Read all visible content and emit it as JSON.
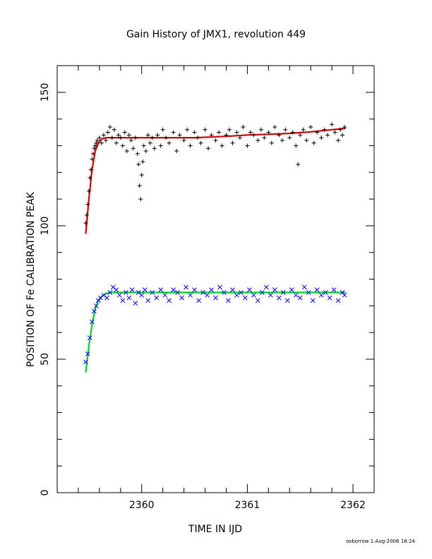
{
  "chart_data": {
    "type": "scatter",
    "title": "Gain History of JMX1, revolution 449",
    "xlabel": "TIME IN IJD",
    "ylabel": "POSITION OF Fe CALIBRATION PEAK",
    "xlim": [
      2359.2,
      2362.2
    ],
    "ylim": [
      0,
      160
    ],
    "x_ticks": [
      "2360",
      "2361",
      "2362"
    ],
    "y_ticks": [
      "0",
      "50",
      "100",
      "150"
    ],
    "grid": false,
    "legend": "none",
    "footer": "oxborrow  1-Aug-2006 18:24",
    "series": [
      {
        "marker": "plus",
        "color": "#000000",
        "x": [
          2359.47,
          2359.48,
          2359.49,
          2359.5,
          2359.51,
          2359.52,
          2359.53,
          2359.54,
          2359.55,
          2359.56,
          2359.57,
          2359.58,
          2359.6,
          2359.62,
          2359.64,
          2359.66,
          2359.68,
          2359.7,
          2359.72,
          2359.74,
          2359.76,
          2359.78,
          2359.8,
          2359.82,
          2359.84,
          2359.86,
          2359.88,
          2359.9,
          2359.92,
          2359.94,
          2359.96,
          2359.97,
          2359.98,
          2359.99,
          2360.0,
          2360.01,
          2360.02,
          2360.04,
          2360.06,
          2360.08,
          2360.1,
          2360.12,
          2360.15,
          2360.18,
          2360.2,
          2360.23,
          2360.26,
          2360.3,
          2360.33,
          2360.36,
          2360.4,
          2360.43,
          2360.46,
          2360.5,
          2360.53,
          2360.56,
          2360.6,
          2360.63,
          2360.66,
          2360.7,
          2360.73,
          2360.76,
          2360.8,
          2360.83,
          2360.86,
          2360.9,
          2360.93,
          2360.96,
          2361.0,
          2361.03,
          2361.06,
          2361.1,
          2361.13,
          2361.16,
          2361.2,
          2361.23,
          2361.26,
          2361.3,
          2361.33,
          2361.36,
          2361.4,
          2361.43,
          2361.46,
          2361.48,
          2361.5,
          2361.53,
          2361.56,
          2361.6,
          2361.63,
          2361.66,
          2361.7,
          2361.73,
          2361.76,
          2361.8,
          2361.83,
          2361.86,
          2361.88,
          2361.9,
          2361.92
        ],
        "y": [
          101,
          104,
          108,
          113,
          118,
          121,
          125,
          127,
          129,
          130,
          131,
          132,
          133,
          131,
          134,
          132,
          135,
          137,
          133,
          136,
          131,
          134,
          133,
          130,
          135,
          128,
          134,
          132,
          129,
          133,
          127,
          123,
          115,
          110,
          119,
          124,
          130,
          128,
          134,
          131,
          133,
          129,
          134,
          130,
          136,
          133,
          131,
          135,
          128,
          134,
          132,
          136,
          130,
          135,
          133,
          131,
          136,
          129,
          134,
          132,
          135,
          130,
          134,
          136,
          131,
          135,
          133,
          137,
          130,
          135,
          134,
          132,
          136,
          133,
          135,
          131,
          137,
          134,
          132,
          136,
          133,
          135,
          130,
          123,
          134,
          136,
          132,
          137,
          131,
          135,
          133,
          136,
          134,
          138,
          135,
          132,
          136,
          134,
          137
        ]
      },
      {
        "marker": "x",
        "color": "#0000ff",
        "x": [
          2359.47,
          2359.49,
          2359.51,
          2359.53,
          2359.55,
          2359.57,
          2359.59,
          2359.61,
          2359.64,
          2359.67,
          2359.7,
          2359.73,
          2359.76,
          2359.79,
          2359.82,
          2359.85,
          2359.88,
          2359.91,
          2359.94,
          2359.97,
          2360.0,
          2360.03,
          2360.06,
          2360.1,
          2360.14,
          2360.18,
          2360.22,
          2360.26,
          2360.3,
          2360.34,
          2360.38,
          2360.42,
          2360.46,
          2360.5,
          2360.54,
          2360.58,
          2360.62,
          2360.66,
          2360.7,
          2360.74,
          2360.78,
          2360.82,
          2360.86,
          2360.9,
          2360.94,
          2360.98,
          2361.02,
          2361.06,
          2361.1,
          2361.14,
          2361.18,
          2361.22,
          2361.26,
          2361.3,
          2361.34,
          2361.38,
          2361.42,
          2361.46,
          2361.5,
          2361.54,
          2361.58,
          2361.62,
          2361.66,
          2361.7,
          2361.74,
          2361.78,
          2361.82,
          2361.86,
          2361.9,
          2361.92
        ],
        "y": [
          49,
          52,
          58,
          64,
          68,
          70,
          72,
          73,
          74,
          73,
          75,
          77,
          76,
          74,
          72,
          75,
          73,
          76,
          71,
          75,
          74,
          76,
          72,
          75,
          73,
          76,
          74,
          72,
          76,
          75,
          73,
          77,
          74,
          76,
          72,
          75,
          74,
          76,
          73,
          77,
          75,
          72,
          76,
          74,
          75,
          73,
          76,
          74,
          72,
          75,
          77,
          74,
          76,
          73,
          75,
          72,
          76,
          74,
          73,
          77,
          75,
          72,
          76,
          74,
          75,
          73,
          76,
          72,
          75,
          74
        ]
      }
    ],
    "fits": [
      {
        "color": "#cc0000",
        "x": [
          2359.47,
          2359.5,
          2359.53,
          2359.56,
          2359.59,
          2359.62,
          2359.66,
          2359.7,
          2359.8,
          2360.0,
          2360.2,
          2360.5,
          2360.8,
          2361.0,
          2361.2,
          2361.4,
          2361.6,
          2361.8,
          2361.93
        ],
        "y": [
          97,
          110,
          121,
          128,
          131,
          132.5,
          133,
          133,
          133,
          133,
          133,
          133,
          133.5,
          134,
          134.3,
          134.6,
          135.2,
          136,
          136.5
        ]
      },
      {
        "color": "#00cc33",
        "x": [
          2359.47,
          2359.5,
          2359.53,
          2359.56,
          2359.59,
          2359.62,
          2359.66,
          2359.7,
          2359.8,
          2360.0,
          2360.4,
          2360.8,
          2361.2,
          2361.6,
          2361.93
        ],
        "y": [
          45,
          55,
          63,
          69,
          72,
          73.5,
          74.5,
          75,
          75,
          75,
          75,
          75,
          75,
          75,
          75
        ]
      }
    ]
  }
}
